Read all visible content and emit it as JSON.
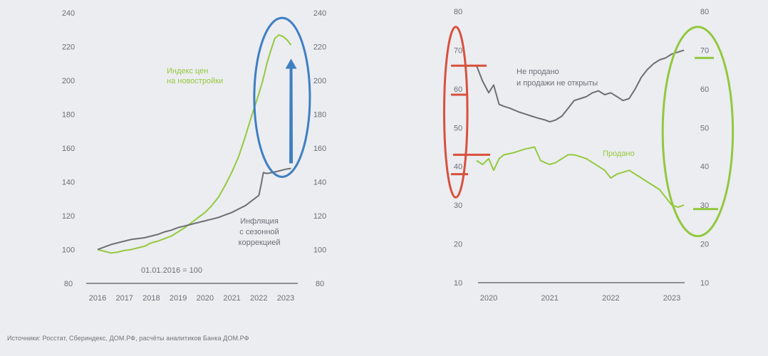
{
  "source_note": "Источники: Росстат, Сбериндекс, ДОМ.РФ, расчёты аналитиков Банка ДОМ.РФ",
  "colors": {
    "background": "#ebedf1",
    "green_series": "#95c93d",
    "gray_series": "#6d6f72",
    "axis_text": "#6b6f76",
    "baseline": "#6f7175",
    "blue_annotation": "#3f7fc2",
    "red_annotation": "#d9503c",
    "green_annotation": "#92c83e"
  },
  "chart_data": [
    {
      "type": "line",
      "title": "",
      "xlabel": "",
      "ylabel": "",
      "ylim": [
        80,
        240
      ],
      "yticks": [
        "80",
        "100",
        "120",
        "140",
        "160",
        "180",
        "200",
        "220",
        "240"
      ],
      "xticks": [
        "2016",
        "2017",
        "2018",
        "2019",
        "2020",
        "2021",
        "2022",
        "2023"
      ],
      "note": "01.01.2016 = 100",
      "legend_placement": "inline",
      "series": [
        {
          "name": "Индекс цен на новостройки",
          "label_lines": [
            "Индекс цен",
            "на новостройки"
          ],
          "color": "#95c93d",
          "x": [
            2016.0,
            2016.25,
            2016.5,
            2016.75,
            2017.0,
            2017.25,
            2017.5,
            2017.75,
            2018.0,
            2018.25,
            2018.5,
            2018.75,
            2019.0,
            2019.25,
            2019.5,
            2019.75,
            2020.0,
            2020.25,
            2020.5,
            2020.75,
            2021.0,
            2021.25,
            2021.5,
            2021.75,
            2022.0,
            2022.15,
            2022.3,
            2022.45,
            2022.6,
            2022.75,
            2022.9,
            2023.05,
            2023.2
          ],
          "values": [
            100,
            99,
            98,
            98.5,
            99.5,
            100,
            101,
            102,
            104,
            105,
            106.5,
            108,
            110.5,
            113,
            116,
            119,
            122,
            126,
            131,
            138,
            146,
            155,
            167,
            180,
            192,
            200,
            210,
            218,
            225,
            227,
            226,
            224,
            221
          ]
        },
        {
          "name": "Инфляция с сезонной коррекцией",
          "label_lines": [
            "Инфляция",
            "с сезонной",
            "коррекцией"
          ],
          "color": "#6d6f72",
          "x": [
            2016.0,
            2016.25,
            2016.5,
            2016.75,
            2017.0,
            2017.25,
            2017.5,
            2017.75,
            2018.0,
            2018.25,
            2018.5,
            2018.75,
            2019.0,
            2019.25,
            2019.5,
            2019.75,
            2020.0,
            2020.25,
            2020.5,
            2020.75,
            2021.0,
            2021.25,
            2021.5,
            2021.75,
            2022.0,
            2022.08,
            2022.17,
            2022.3,
            2022.5,
            2022.75,
            2023.0,
            2023.2
          ],
          "values": [
            100,
            101.5,
            103,
            104,
            105,
            106,
            106.5,
            107,
            108,
            109,
            110.5,
            111.5,
            113,
            114,
            115,
            116,
            117,
            118,
            119,
            120.5,
            122,
            124,
            126,
            129,
            132,
            138,
            145.5,
            145,
            145.5,
            146.5,
            147.5,
            148
          ]
        }
      ],
      "annotations": [
        {
          "kind": "ellipse",
          "color": "#3f7fc2",
          "x_range": [
            2021.83,
            2023.9
          ],
          "y_range": [
            143,
            237
          ]
        },
        {
          "kind": "arrow",
          "color": "#3f7fc2",
          "x": 2023.2,
          "from": 151,
          "to": 212
        }
      ]
    },
    {
      "type": "line",
      "title": "",
      "xlabel": "",
      "ylabel": "",
      "ylim": [
        10,
        80
      ],
      "yticks": [
        "10",
        "20",
        "30",
        "40",
        "50",
        "60",
        "70",
        "80"
      ],
      "xticks": [
        "2020",
        "2021",
        "2022",
        "2023"
      ],
      "legend_placement": "inline",
      "series": [
        {
          "name": "Не продано и продажи не открыты",
          "label_lines": [
            "Не продано",
            "и продажи не открыты"
          ],
          "color": "#6d6f72",
          "x": [
            2019.8,
            2019.9,
            2020.0,
            2020.08,
            2020.17,
            2020.25,
            2020.35,
            2020.5,
            2020.6,
            2020.7,
            2020.8,
            2020.92,
            2021.0,
            2021.1,
            2021.2,
            2021.3,
            2021.4,
            2021.5,
            2021.6,
            2021.7,
            2021.8,
            2021.9,
            2022.0,
            2022.1,
            2022.2,
            2022.3,
            2022.4,
            2022.5,
            2022.6,
            2022.7,
            2022.8,
            2022.9,
            2023.0,
            2023.1,
            2023.2
          ],
          "values": [
            66,
            62,
            59,
            61,
            56,
            55.5,
            55,
            54,
            53.5,
            53,
            52.5,
            52,
            51.5,
            52,
            53,
            55,
            57,
            57.5,
            58,
            59,
            59.5,
            58.5,
            59,
            58,
            57,
            57.5,
            60,
            63,
            65,
            66.5,
            67.5,
            68,
            69,
            69.5,
            70
          ]
        },
        {
          "name": "Продано",
          "label_lines": [
            "Продано"
          ],
          "color": "#95c93d",
          "x": [
            2019.8,
            2019.9,
            2020.0,
            2020.08,
            2020.17,
            2020.25,
            2020.4,
            2020.5,
            2020.6,
            2020.75,
            2020.85,
            2020.92,
            2021.0,
            2021.1,
            2021.2,
            2021.3,
            2021.4,
            2021.5,
            2021.6,
            2021.7,
            2021.8,
            2021.9,
            2022.0,
            2022.1,
            2022.2,
            2022.3,
            2022.4,
            2022.5,
            2022.6,
            2022.7,
            2022.8,
            2022.9,
            2023.0,
            2023.1,
            2023.2
          ],
          "values": [
            41.5,
            40.5,
            42,
            39,
            42,
            43,
            43.5,
            44,
            44.5,
            45,
            41.5,
            41,
            40.5,
            41,
            42,
            43,
            43,
            42.5,
            42,
            41,
            40,
            39,
            37,
            38,
            38.5,
            39,
            38,
            37,
            36,
            35,
            34,
            32,
            30,
            29.5,
            30
          ]
        }
      ],
      "annotations": [
        {
          "kind": "ellipse",
          "color": "#d9503c",
          "x_range": [
            2019.27,
            2019.65
          ],
          "y_range": [
            32,
            76
          ]
        },
        {
          "kind": "marker",
          "color": "#d9503c",
          "y": 66
        },
        {
          "kind": "marker",
          "color": "#d9503c",
          "y": 58.5
        },
        {
          "kind": "marker",
          "color": "#d9503c",
          "y": 43
        },
        {
          "kind": "marker",
          "color": "#d9503c",
          "y": 38
        },
        {
          "kind": "ellipse",
          "color": "#92c83e",
          "x_range": [
            2022.85,
            2024.0
          ],
          "y_range": [
            22,
            76
          ]
        },
        {
          "kind": "marker",
          "color": "#92c83e",
          "y": 68
        },
        {
          "kind": "marker",
          "color": "#92c83e",
          "y": 29
        }
      ]
    }
  ]
}
